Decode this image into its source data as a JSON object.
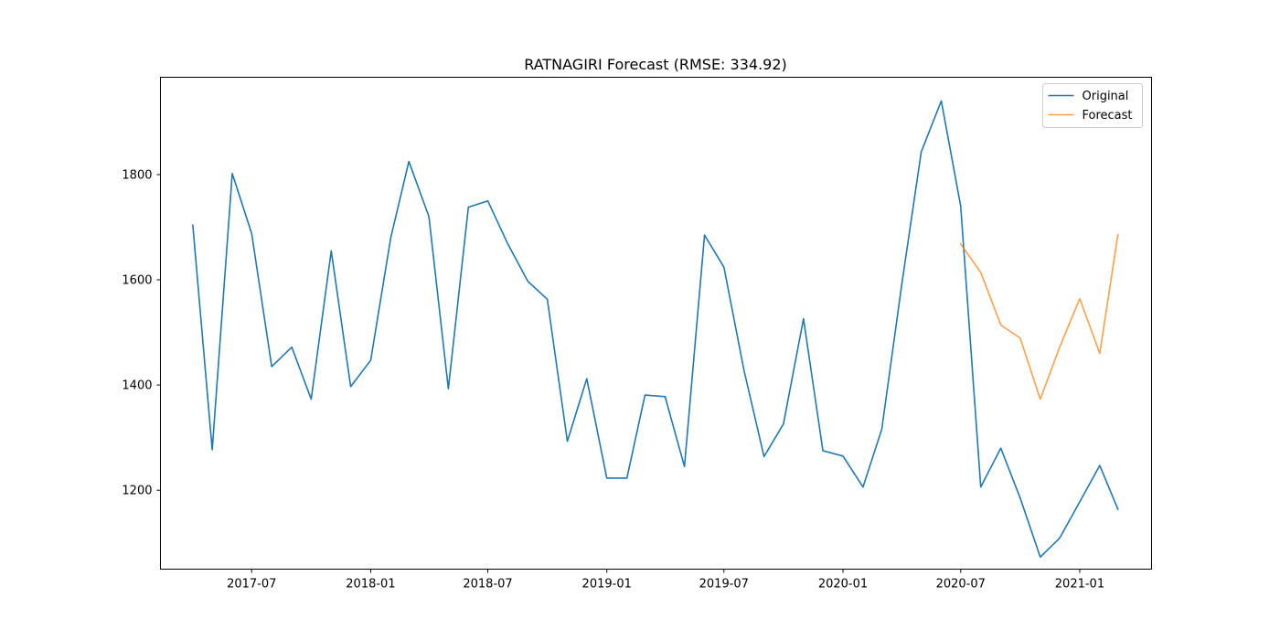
{
  "chart_data": {
    "type": "line",
    "title": "RATNAGIRI Forecast (RMSE: 334.92)",
    "xlabel": "",
    "ylabel": "",
    "x_axis": {
      "scale": "date",
      "range": [
        "2017-02-10",
        "2021-04-22"
      ],
      "ticks": [
        {
          "date": "2017-07-01",
          "label": "2017-07"
        },
        {
          "date": "2018-01-01",
          "label": "2018-01"
        },
        {
          "date": "2018-07-01",
          "label": "2018-07"
        },
        {
          "date": "2019-01-01",
          "label": "2019-01"
        },
        {
          "date": "2019-07-01",
          "label": "2019-07"
        },
        {
          "date": "2020-01-01",
          "label": "2020-01"
        },
        {
          "date": "2020-07-01",
          "label": "2020-07"
        },
        {
          "date": "2021-01-01",
          "label": "2021-01"
        }
      ]
    },
    "y_axis": {
      "range": [
        1050,
        1985
      ],
      "ticks": [
        1200,
        1400,
        1600,
        1800
      ]
    },
    "grid": false,
    "legend": "top-right",
    "series": [
      {
        "name": "Original",
        "color": "#1f77b4",
        "points": [
          [
            "2017-04-01",
            1704
          ],
          [
            "2017-05-01",
            1277
          ],
          [
            "2017-06-01",
            1802
          ],
          [
            "2017-07-01",
            1688
          ],
          [
            "2017-08-01",
            1435
          ],
          [
            "2017-09-01",
            1472
          ],
          [
            "2017-10-01",
            1373
          ],
          [
            "2017-11-01",
            1655
          ],
          [
            "2017-12-01",
            1397
          ],
          [
            "2018-01-01",
            1447
          ],
          [
            "2018-02-01",
            1680
          ],
          [
            "2018-03-01",
            1825
          ],
          [
            "2018-04-01",
            1720
          ],
          [
            "2018-05-01",
            1393
          ],
          [
            "2018-06-01",
            1738
          ],
          [
            "2018-07-01",
            1750
          ],
          [
            "2018-08-01",
            1668
          ],
          [
            "2018-09-01",
            1597
          ],
          [
            "2018-10-01",
            1563
          ],
          [
            "2018-11-01",
            1293
          ],
          [
            "2018-12-01",
            1412
          ],
          [
            "2019-01-01",
            1223
          ],
          [
            "2019-02-01",
            1223
          ],
          [
            "2019-03-01",
            1381
          ],
          [
            "2019-04-01",
            1378
          ],
          [
            "2019-05-01",
            1245
          ],
          [
            "2019-06-01",
            1685
          ],
          [
            "2019-07-01",
            1624
          ],
          [
            "2019-08-01",
            1428
          ],
          [
            "2019-09-01",
            1264
          ],
          [
            "2019-10-01",
            1326
          ],
          [
            "2019-11-01",
            1526
          ],
          [
            "2019-12-01",
            1275
          ],
          [
            "2020-01-01",
            1265
          ],
          [
            "2020-02-01",
            1206
          ],
          [
            "2020-03-01",
            1316
          ],
          [
            "2020-04-01",
            1592
          ],
          [
            "2020-05-01",
            1843
          ],
          [
            "2020-06-01",
            1940
          ],
          [
            "2020-07-01",
            1740
          ],
          [
            "2020-08-01",
            1206
          ],
          [
            "2020-09-01",
            1280
          ],
          [
            "2020-10-01",
            1185
          ],
          [
            "2020-11-01",
            1073
          ],
          [
            "2020-12-01",
            1109
          ],
          [
            "2021-01-01",
            1178
          ],
          [
            "2021-02-01",
            1247
          ],
          [
            "2021-03-01",
            1164
          ]
        ]
      },
      {
        "name": "Forecast",
        "color": "#ff7f0e",
        "points": [
          [
            "2020-07-01",
            1668
          ],
          [
            "2020-08-01",
            1614
          ],
          [
            "2020-09-01",
            1514
          ],
          [
            "2020-10-01",
            1489
          ],
          [
            "2020-11-01",
            1373
          ],
          [
            "2020-12-01",
            1472
          ],
          [
            "2021-01-01",
            1564
          ],
          [
            "2021-02-01",
            1460
          ],
          [
            "2021-03-01",
            1686
          ]
        ]
      }
    ]
  }
}
